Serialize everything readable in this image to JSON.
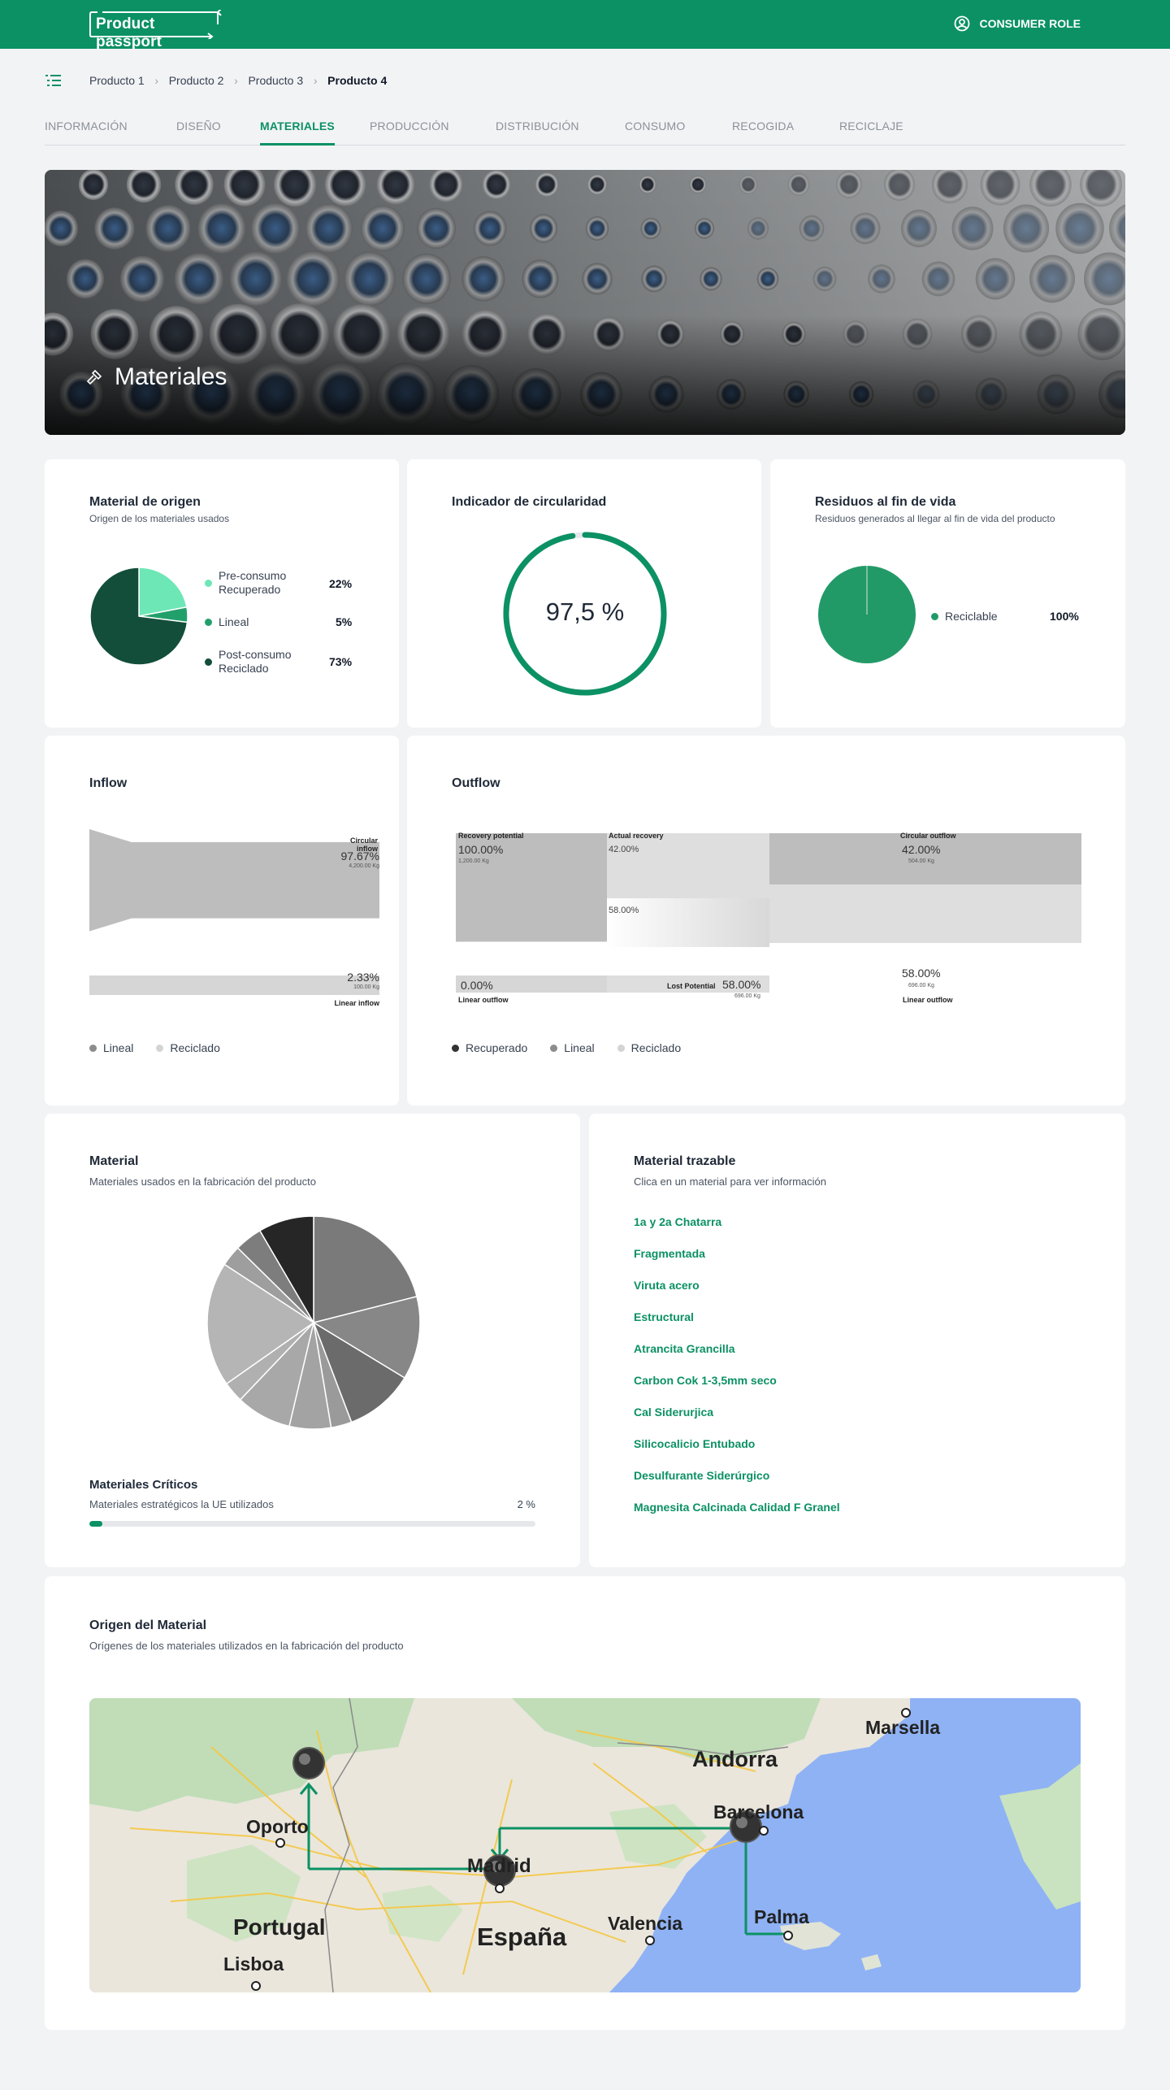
{
  "header": {
    "logo": "Product passport",
    "role": "CONSUMER ROLE"
  },
  "breadcrumb": [
    "Producto 1",
    "Producto 2",
    "Producto 3",
    "Producto 4"
  ],
  "tabs": [
    {
      "label": "INFORMACIÓN",
      "active": false
    },
    {
      "label": "DISEÑO",
      "active": false
    },
    {
      "label": "MATERIALES",
      "active": true
    },
    {
      "label": "PRODUCCIÓN",
      "active": false
    },
    {
      "label": "DISTRIBUCIÓN",
      "active": false
    },
    {
      "label": "CONSUMO",
      "active": false
    },
    {
      "label": "RECOGIDA",
      "active": false
    },
    {
      "label": "RECICLAJE",
      "active": false
    }
  ],
  "hero": {
    "title": "Materiales"
  },
  "origin": {
    "title": "Material de origen",
    "subtitle": "Origen de los materiales usados",
    "items": [
      {
        "label1": "Pre-consumo",
        "label2": "Recuperado",
        "pct": "22%",
        "color": "#6ee7b7"
      },
      {
        "label1": "Lineal",
        "label2": "",
        "pct": "5%",
        "color": "#22a06b"
      },
      {
        "label1": "Post-consumo",
        "label2": "Reciclado",
        "pct": "73%",
        "color": "#134e3a"
      }
    ]
  },
  "circularity": {
    "title": "Indicador de circularidad",
    "value_text": "97,5 %",
    "value": 97.5
  },
  "waste": {
    "title": "Residuos al fin de vida",
    "subtitle": "Residuos generados al llegar al fin de vida del producto",
    "items": [
      {
        "label": "Reciclable",
        "pct": "100%",
        "color": "#229a68"
      }
    ]
  },
  "inflow": {
    "title": "Inflow",
    "circular_label": "Circular inflow",
    "circular_pct": "97.67%",
    "circular_kg": "4,200.00 Kg",
    "linear_pct": "2.33%",
    "linear_kg": "100.00 Kg",
    "linear_label": "Linear inflow",
    "legend": [
      {
        "label": "Lineal",
        "color": "#8c8c8c"
      },
      {
        "label": "Reciclado",
        "color": "#d4d4d4"
      }
    ]
  },
  "outflow": {
    "title": "Outflow",
    "recovery_potential_label": "Recovery potential",
    "recovery_potential_pct": "100.00%",
    "recovery_potential_kg": "1,200.00 Kg",
    "actual_recovery_label": "Actual recovery",
    "actual_recovery_pct": "42.00%",
    "mid_pct": "58.00%",
    "circular_outflow_label": "Circular outflow",
    "circular_outflow_pct": "42.00%",
    "circular_outflow_kg": "504.00 Kg",
    "linear_outflow_zero_pct": "0.00%",
    "linear_outflow_left_label": "Linear outflow",
    "lost_potential_label": "Lost Potential",
    "lost_potential_pct": "58.00%",
    "lost_potential_kg": "696.00 Kg",
    "linear_outflow_pct": "58.00%",
    "linear_outflow_kg": "696.00 Kg",
    "linear_outflow_right_label": "Linear outflow",
    "legend": [
      {
        "label": "Recuperado",
        "color": "#333333"
      },
      {
        "label": "Lineal",
        "color": "#8c8c8c"
      },
      {
        "label": "Reciclado",
        "color": "#d4d4d4"
      }
    ]
  },
  "material": {
    "title": "Material",
    "subtitle": "Materiales usados en la fabricación del producto",
    "slices": [
      {
        "value": 20,
        "color": "#7a7a7a"
      },
      {
        "value": 12,
        "color": "#878787"
      },
      {
        "value": 10,
        "color": "#6b6b6b"
      },
      {
        "value": 3,
        "color": "#9a9a9a"
      },
      {
        "value": 6,
        "color": "#a3a3a3"
      },
      {
        "value": 8,
        "color": "#a8a8a8"
      },
      {
        "value": 3,
        "color": "#b0b0b0"
      },
      {
        "value": 18,
        "color": "#b5b5b5"
      },
      {
        "value": 3,
        "color": "#9e9e9e"
      },
      {
        "value": 4,
        "color": "#7d7d7d"
      },
      {
        "value": 8,
        "color": "#262626"
      }
    ],
    "critical_title": "Materiales Críticos",
    "critical_sub": "Materiales estratégicos la UE utilizados",
    "critical_pct_text": "2 %",
    "critical_pct": 2
  },
  "traceable": {
    "title": "Material trazable",
    "subtitle": "Clica en un material para ver información",
    "items": [
      "1a y 2a Chatarra",
      "Fragmentada",
      "Viruta acero",
      "Estructural",
      "Atrancita Grancilla",
      "Carbon Cok 1-3,5mm seco",
      "Cal Siderurjica",
      "Silicocalicio Entubado",
      "Desulfurante Siderúrgico",
      "Magnesita Calcinada Calidad  F Granel"
    ]
  },
  "map": {
    "title": "Origen del Material",
    "subtitle": "Orígenes de los materiales utilizados en la fabricación del producto",
    "labels": [
      "Marsella",
      "Andorra",
      "Barcelona",
      "Oporto",
      "Madrid",
      "Portugal",
      "España",
      "Valencia",
      "Palma",
      "Lisboa"
    ]
  }
}
